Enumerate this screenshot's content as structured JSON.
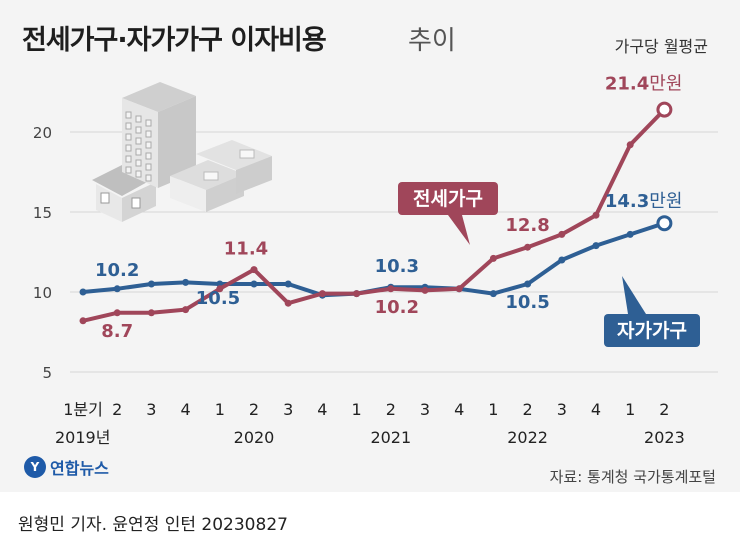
{
  "header": {
    "title": "전세가구·자가가구 이자비용",
    "title_suffix": "추이",
    "unit": "가구당 월평균"
  },
  "footer": {
    "logo_text": "연합뉴스",
    "source": "자료: 통계청 국가통계포털",
    "credit": "원형민 기자. 윤연정 인턴  20230827"
  },
  "chart_data": {
    "type": "line",
    "title": "전세가구·자가가구 이자비용 추이",
    "unit": "가구당 월평균",
    "x_ticks": [
      "1분기",
      "2",
      "3",
      "4",
      "1",
      "2",
      "3",
      "4",
      "1",
      "2",
      "3",
      "4",
      "1",
      "2",
      "3",
      "4",
      "1",
      "2"
    ],
    "years": [
      {
        "label": "2019년",
        "index": 0
      },
      {
        "label": "2020",
        "index": 5
      },
      {
        "label": "2021",
        "index": 9
      },
      {
        "label": "2022",
        "index": 13
      },
      {
        "label": "2023",
        "index": 17
      }
    ],
    "ylim": [
      5,
      22
    ],
    "yticks": [
      5,
      10,
      15,
      20
    ],
    "series": [
      {
        "name": "전세가구",
        "color": "#a0465a",
        "values": [
          8.2,
          8.7,
          8.7,
          8.9,
          10.2,
          11.4,
          9.3,
          9.9,
          9.9,
          10.2,
          10.1,
          10.2,
          12.1,
          12.8,
          13.6,
          14.8,
          19.2,
          21.4
        ]
      },
      {
        "name": "자가가구",
        "color": "#2e5f94",
        "values": [
          10.0,
          10.2,
          10.5,
          10.6,
          10.5,
          10.5,
          10.5,
          9.8,
          9.9,
          10.3,
          10.3,
          10.2,
          9.9,
          10.5,
          12.0,
          12.9,
          13.6,
          14.3
        ]
      }
    ],
    "annotations": [
      {
        "text": "10.2",
        "series": 1,
        "index": 1
      },
      {
        "text": "8.7",
        "series": 0,
        "index": 1
      },
      {
        "text": "11.4",
        "series": 0,
        "index": 5
      },
      {
        "text": "10.5",
        "series": 1,
        "index": 5
      },
      {
        "text": "10.3",
        "series": 1,
        "index": 9
      },
      {
        "text": "10.2",
        "series": 0,
        "index": 9
      },
      {
        "text": "12.8",
        "series": 0,
        "index": 13
      },
      {
        "text": "10.5",
        "series": 1,
        "index": 13
      },
      {
        "text": "21.4",
        "unit": "만원",
        "series": 0,
        "index": 17
      },
      {
        "text": "14.3",
        "unit": "만원",
        "series": 1,
        "index": 17
      }
    ],
    "legend": [
      {
        "text": "전세가구",
        "series": 0
      },
      {
        "text": "자가가구",
        "series": 1
      }
    ],
    "grid": true
  }
}
